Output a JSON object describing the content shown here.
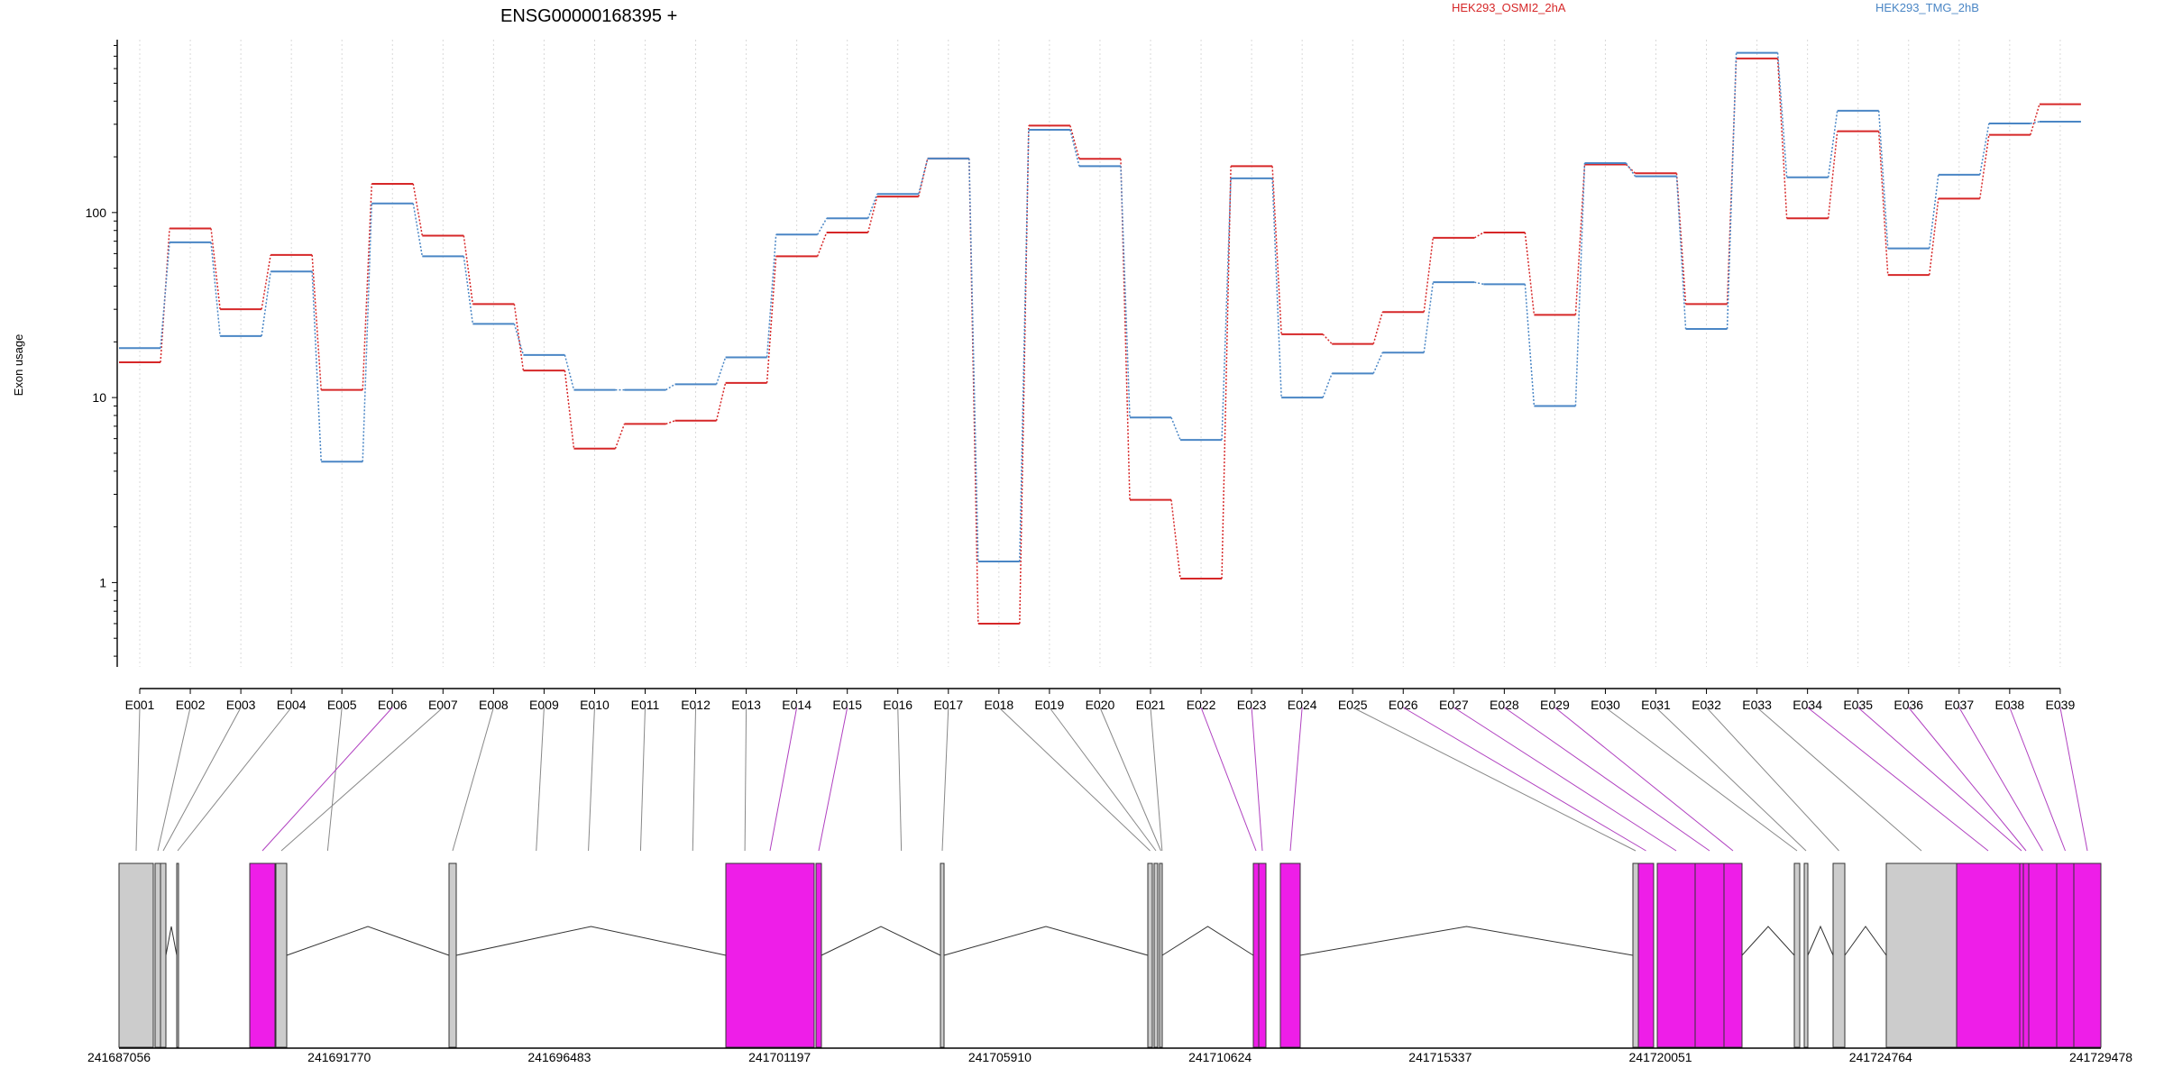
{
  "chart_data": {
    "type": "line",
    "title": "ENSG00000168395 +",
    "ylabel": "Exon usage",
    "xlabel": "",
    "y_scale": "log",
    "ylim": [
      0.35,
      860
    ],
    "y_ticks": [
      1,
      10,
      100
    ],
    "y_tick_labels": [
      "1",
      "10",
      "100"
    ],
    "grid": "vertical dotted",
    "legend_placement": "top-right",
    "categories": [
      "E001",
      "E002",
      "E003",
      "E004",
      "E005",
      "E006",
      "E007",
      "E008",
      "E009",
      "E010",
      "E011",
      "E012",
      "E013",
      "E014",
      "E015",
      "E016",
      "E017",
      "E018",
      "E019",
      "E020",
      "E021",
      "E022",
      "E023",
      "E024",
      "E025",
      "E026",
      "E027",
      "E028",
      "E029",
      "E030",
      "E031",
      "E032",
      "E033",
      "E034",
      "E035",
      "E036",
      "E037",
      "E038",
      "E039"
    ],
    "series": [
      {
        "name": "HEK293_OSMI2_2hA",
        "color": "#d62728",
        "values": [
          15.5,
          82,
          30,
          59,
          11,
          143,
          75,
          32,
          14,
          5.3,
          7.2,
          7.5,
          12,
          58,
          78,
          122,
          196,
          0.6,
          295,
          195,
          2.8,
          1.05,
          178,
          22,
          19.5,
          29,
          73,
          78,
          28,
          182,
          163,
          32,
          680,
          93,
          275,
          46,
          119,
          263,
          385
        ]
      },
      {
        "name": "HEK293_TMG_2hB",
        "color": "#4a86c5",
        "values": [
          18.5,
          69,
          21.5,
          48,
          4.5,
          112,
          58,
          25,
          17,
          11,
          11,
          11.8,
          16.5,
          76,
          93,
          126,
          196,
          1.3,
          280,
          178,
          7.8,
          5.9,
          153,
          10,
          13.5,
          17.5,
          42,
          41,
          9,
          185,
          157,
          23.5,
          730,
          155,
          355,
          64,
          160,
          303,
          310
        ]
      }
    ],
    "gene_coordinate_labels": [
      "241687056",
      "241691770",
      "241696483",
      "241701197",
      "241705910",
      "241710624",
      "241715337",
      "241720051",
      "241724764",
      "241729478"
    ],
    "exon_highlight_color": "#ee1ee8",
    "exon_default_color": "#cccccc",
    "exon_highlighted": [
      false,
      false,
      false,
      false,
      false,
      true,
      false,
      false,
      false,
      false,
      false,
      false,
      false,
      true,
      true,
      false,
      false,
      false,
      false,
      false,
      false,
      true,
      true,
      true,
      false,
      true,
      true,
      true,
      true,
      false,
      false,
      false,
      false,
      true,
      true,
      true,
      true,
      true,
      true
    ]
  }
}
